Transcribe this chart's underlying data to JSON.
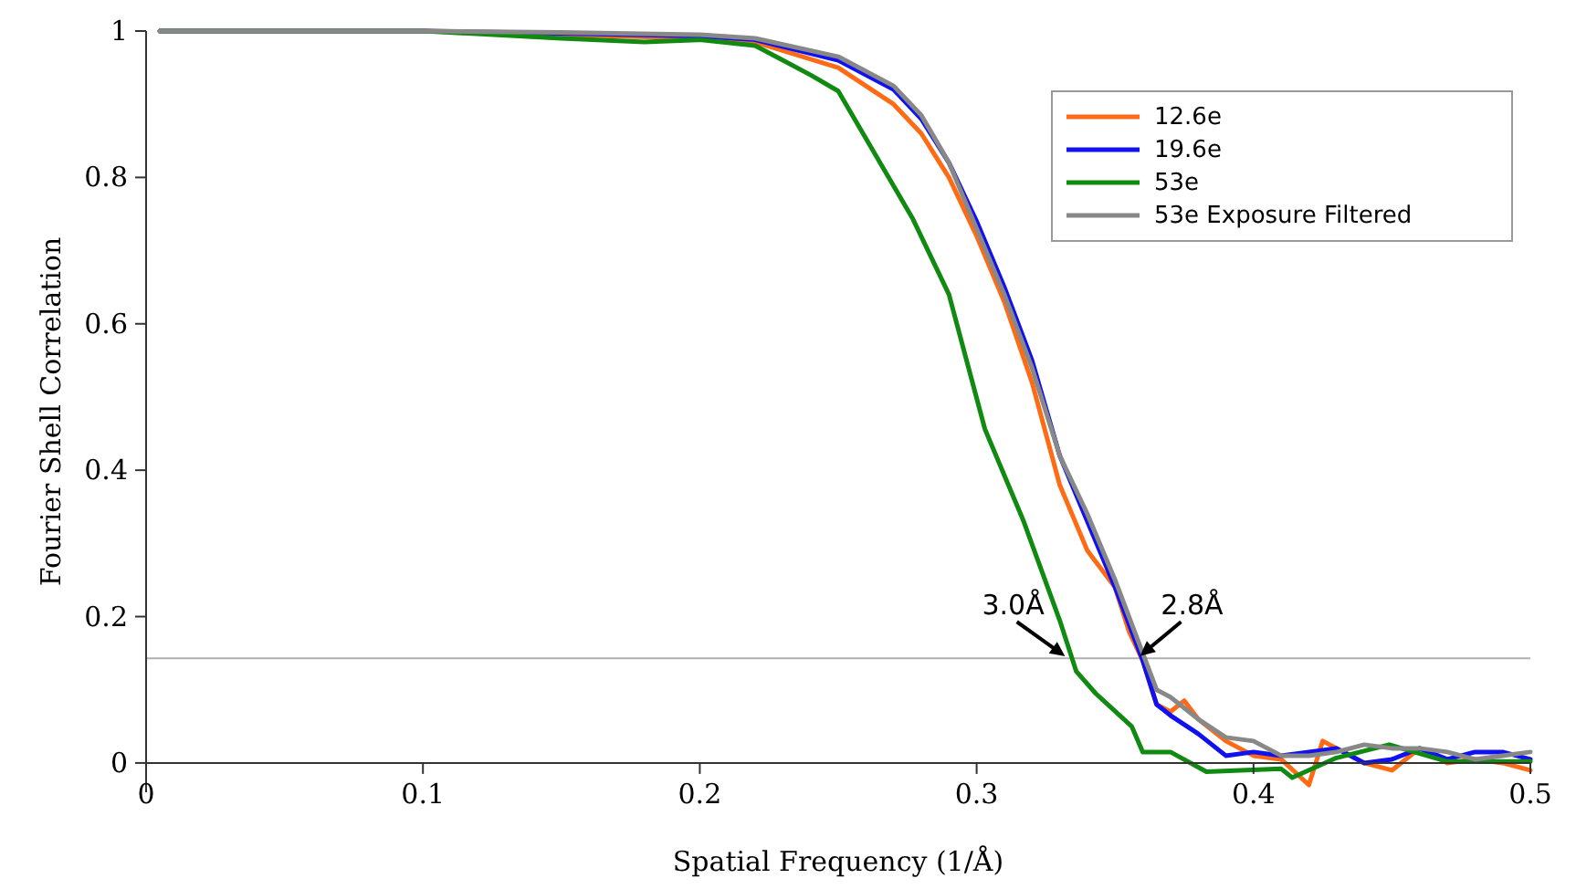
{
  "chart_data": {
    "type": "line",
    "xlabel": "Spatial Frequency (1/Å)",
    "ylabel": "Fourier Shell Correlation",
    "xlim": [
      0,
      0.5
    ],
    "ylim": [
      -0.04,
      1
    ],
    "xticks": [
      0,
      0.1,
      0.2,
      0.3,
      0.4,
      0.5
    ],
    "yticks": [
      0,
      0.2,
      0.4,
      0.6,
      0.8,
      1
    ],
    "grid": false,
    "legend": "top right",
    "marker": "none",
    "line_style": "solid",
    "ref_lines": [
      {
        "axis": "y",
        "value": 0.143,
        "color": "#b0b0b0"
      }
    ],
    "annotations": [
      {
        "text": "3.0Å",
        "x": 0.333,
        "y": 0.143
      },
      {
        "text": "2.8Å",
        "x": 0.358,
        "y": 0.143
      }
    ],
    "series": [
      {
        "name": "12.6e",
        "color": "#ff6a14",
        "x": [
          0.005,
          0.1,
          0.15,
          0.2,
          0.22,
          0.25,
          0.27,
          0.28,
          0.29,
          0.3,
          0.31,
          0.32,
          0.33,
          0.34,
          0.35,
          0.355,
          0.36,
          0.365,
          0.37,
          0.375,
          0.38,
          0.39,
          0.4,
          0.41,
          0.42,
          0.425,
          0.43,
          0.44,
          0.45,
          0.46,
          0.47,
          0.48,
          0.49,
          0.5
        ],
        "values": [
          1,
          1,
          0.995,
          0.99,
          0.985,
          0.95,
          0.9,
          0.86,
          0.8,
          0.72,
          0.63,
          0.52,
          0.38,
          0.29,
          0.24,
          0.18,
          0.14,
          0.08,
          0.07,
          0.085,
          0.06,
          0.03,
          0.01,
          0.005,
          -0.03,
          0.03,
          0.02,
          0,
          -0.01,
          0.02,
          0,
          0.005,
          0,
          -0.01
        ]
      },
      {
        "name": "19.6e",
        "color": "#1010f0",
        "x": [
          0.005,
          0.1,
          0.15,
          0.2,
          0.22,
          0.25,
          0.27,
          0.28,
          0.29,
          0.3,
          0.31,
          0.32,
          0.33,
          0.34,
          0.35,
          0.36,
          0.365,
          0.37,
          0.38,
          0.39,
          0.4,
          0.41,
          0.42,
          0.43,
          0.44,
          0.45,
          0.46,
          0.47,
          0.48,
          0.49,
          0.5
        ],
        "values": [
          1,
          1,
          0.997,
          0.993,
          0.988,
          0.96,
          0.92,
          0.88,
          0.82,
          0.74,
          0.65,
          0.55,
          0.42,
          0.33,
          0.24,
          0.14,
          0.08,
          0.065,
          0.04,
          0.01,
          0.015,
          0.01,
          0.015,
          0.02,
          0,
          0.005,
          0.02,
          0.005,
          0.015,
          0.015,
          0.005
        ]
      },
      {
        "name": "53e",
        "color": "#108a10",
        "x": [
          0.005,
          0.1,
          0.15,
          0.18,
          0.2,
          0.22,
          0.23,
          0.24,
          0.25,
          0.277,
          0.29,
          0.303,
          0.317,
          0.33,
          0.336,
          0.343,
          0.356,
          0.36,
          0.37,
          0.383,
          0.41,
          0.414,
          0.43,
          0.449,
          0.47,
          0.5
        ],
        "values": [
          1,
          1,
          0.99,
          0.985,
          0.988,
          0.98,
          0.96,
          0.94,
          0.918,
          0.743,
          0.64,
          0.456,
          0.33,
          0.195,
          0.125,
          0.095,
          0.05,
          0.015,
          0.015,
          -0.012,
          -0.008,
          -0.02,
          0.007,
          0.025,
          0.002,
          0.002
        ]
      },
      {
        "name": "53e Exposure Filtered",
        "color": "#888888",
        "x": [
          0.005,
          0.1,
          0.15,
          0.2,
          0.22,
          0.25,
          0.27,
          0.28,
          0.29,
          0.3,
          0.31,
          0.32,
          0.33,
          0.34,
          0.35,
          0.36,
          0.365,
          0.37,
          0.38,
          0.39,
          0.4,
          0.41,
          0.42,
          0.43,
          0.44,
          0.45,
          0.46,
          0.47,
          0.48,
          0.49,
          0.5
        ],
        "values": [
          1,
          1,
          0.998,
          0.995,
          0.99,
          0.965,
          0.925,
          0.885,
          0.82,
          0.73,
          0.64,
          0.54,
          0.42,
          0.34,
          0.25,
          0.15,
          0.1,
          0.09,
          0.06,
          0.035,
          0.03,
          0.01,
          0.01,
          0.015,
          0.025,
          0.02,
          0.02,
          0.015,
          0.005,
          0.01,
          0.015
        ]
      }
    ]
  }
}
